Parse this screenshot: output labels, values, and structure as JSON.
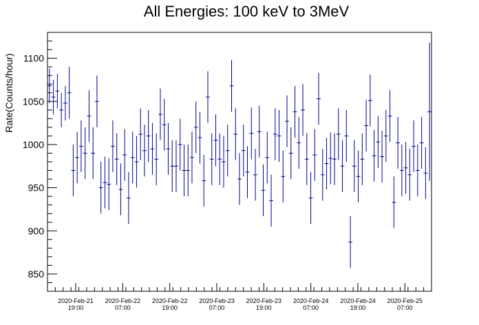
{
  "chart_data": {
    "type": "scatter",
    "title": "All Energies:  100 keV to 3MeV",
    "ylabel": "Rate(Counts/hour)",
    "xlabel": "",
    "ylim": [
      830,
      1130
    ],
    "xlim_hours": [
      0,
      98
    ],
    "yticks": [
      850,
      900,
      950,
      1000,
      1050,
      1100
    ],
    "xticks": [
      {
        "hours_from_start": 7.2,
        "line1": "2020-Feb-21",
        "line2": "19:00"
      },
      {
        "hours_from_start": 19.2,
        "line1": "2020-Feb-22",
        "line2": "07:00"
      },
      {
        "hours_from_start": 31.2,
        "line1": "2020-Feb-22",
        "line2": "19:00"
      },
      {
        "hours_from_start": 43.2,
        "line1": "2020-Feb-23",
        "line2": "07:00"
      },
      {
        "hours_from_start": 55.2,
        "line1": "2020-Feb-23",
        "line2": "19:00"
      },
      {
        "hours_from_start": 67.2,
        "line1": "2020-Feb-24",
        "line2": "07:00"
      },
      {
        "hours_from_start": 79.2,
        "line1": "2020-Feb-24",
        "line2": "19:00"
      },
      {
        "hours_from_start": 91.2,
        "line1": "2020-Feb-25",
        "line2": "07:00"
      }
    ],
    "grid": false,
    "legend": "none",
    "marker_color": "#00008b",
    "series": [
      {
        "values": [
          1068,
          1055,
          1062,
          1040,
          1048,
          1060,
          970,
          985,
          998,
          990,
          1033,
          990,
          1050,
          950,
          956,
          954,
          998,
          983,
          948,
          988,
          938,
          985,
          980,
          1012,
          993,
          1010,
          995,
          983,
          1035,
          1023,
          995,
          975,
          975,
          1000,
          970,
          970,
          985,
          1020,
          1008,
          958,
          1055,
          983,
          1005,
          983,
          980,
          993,
          1068,
          1012,
          960,
          993,
          968,
          1013,
          965,
          1015,
          947,
          985,
          935,
          1012,
          1010,
          963,
          1027,
          990,
          1038,
          1002,
          1040,
          983,
          938,
          988,
          1053,
          965,
          978,
          984,
          983,
          1012,
          975,
          1010,
          887,
          975,
          963,
          983,
          1022,
          1051,
          987,
          1003,
          986,
          1010,
          1033,
          933,
          1002,
          970,
          973,
          965,
          998,
          970,
          1002,
          967,
          1038
        ],
        "errors": [
          20,
          20,
          20,
          20,
          20,
          30,
          30,
          30,
          30,
          30,
          30,
          30,
          30,
          30,
          30,
          30,
          30,
          30,
          30,
          30,
          30,
          30,
          30,
          30,
          30,
          30,
          30,
          30,
          30,
          30,
          30,
          30,
          30,
          30,
          30,
          30,
          30,
          30,
          30,
          30,
          30,
          30,
          30,
          30,
          30,
          30,
          30,
          30,
          30,
          30,
          30,
          30,
          30,
          30,
          30,
          30,
          30,
          30,
          30,
          30,
          30,
          30,
          30,
          30,
          30,
          30,
          30,
          30,
          30,
          30,
          30,
          30,
          30,
          30,
          30,
          30,
          30,
          30,
          30,
          30,
          30,
          30,
          30,
          30,
          30,
          30,
          30,
          30,
          30,
          30,
          30,
          30,
          30,
          30,
          30,
          30,
          80
        ]
      }
    ]
  }
}
